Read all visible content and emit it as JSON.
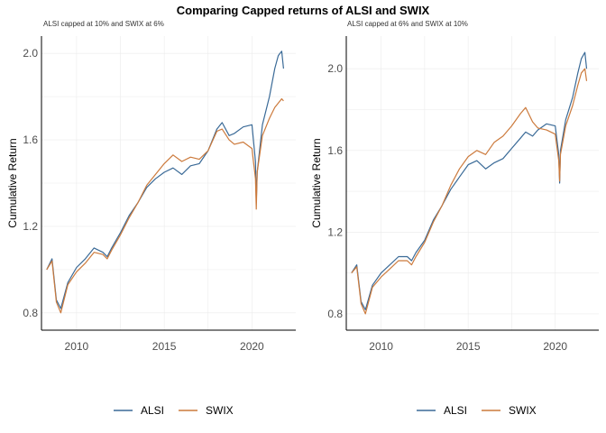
{
  "title": "Comparing Capped returns of ALSI and SWIX",
  "colors": {
    "ALSI": "#3a6a97",
    "SWIX": "#cc7a3c"
  },
  "legend": {
    "position": "bottom",
    "items": [
      "ALSI",
      "SWIX"
    ]
  },
  "chart_data": [
    {
      "type": "line",
      "subtitle": "ALSI capped at 10% and SWIX at 6%",
      "xlabel": "",
      "ylabel": "Cumulative Return",
      "xlim": [
        2008.0,
        2022.5
      ],
      "ylim": [
        0.72,
        2.08
      ],
      "xticks": [
        2010,
        2015,
        2020
      ],
      "yticks": [
        0.8,
        1.2,
        1.6,
        2.0
      ],
      "ytick_labels": [
        "0.8",
        "1.2",
        "1.6",
        "2.0"
      ],
      "grid": true,
      "series": [
        {
          "name": "ALSI",
          "x": [
            2008.3,
            2008.6,
            2008.85,
            2009.1,
            2009.5,
            2010.0,
            2010.5,
            2011.0,
            2011.5,
            2011.75,
            2012.0,
            2012.5,
            2013.0,
            2013.5,
            2014.0,
            2014.5,
            2015.0,
            2015.5,
            2016.0,
            2016.5,
            2017.0,
            2017.5,
            2018.0,
            2018.3,
            2018.7,
            2019.0,
            2019.5,
            2020.0,
            2020.2,
            2020.25,
            2020.3,
            2020.6,
            2021.0,
            2021.3,
            2021.5,
            2021.7,
            2021.8
          ],
          "values": [
            1.0,
            1.05,
            0.86,
            0.82,
            0.94,
            1.01,
            1.05,
            1.1,
            1.08,
            1.06,
            1.1,
            1.17,
            1.25,
            1.31,
            1.38,
            1.42,
            1.45,
            1.47,
            1.44,
            1.48,
            1.49,
            1.55,
            1.65,
            1.68,
            1.62,
            1.63,
            1.66,
            1.67,
            1.5,
            1.31,
            1.45,
            1.67,
            1.8,
            1.93,
            1.99,
            2.01,
            1.93
          ]
        },
        {
          "name": "SWIX",
          "x": [
            2008.3,
            2008.6,
            2008.85,
            2009.1,
            2009.5,
            2010.0,
            2010.5,
            2011.0,
            2011.5,
            2011.75,
            2012.0,
            2012.5,
            2013.0,
            2013.5,
            2014.0,
            2014.5,
            2015.0,
            2015.5,
            2016.0,
            2016.5,
            2017.0,
            2017.5,
            2018.0,
            2018.3,
            2018.7,
            2019.0,
            2019.5,
            2020.0,
            2020.2,
            2020.25,
            2020.3,
            2020.6,
            2021.0,
            2021.3,
            2021.5,
            2021.7,
            2021.8
          ],
          "values": [
            1.0,
            1.04,
            0.85,
            0.8,
            0.93,
            0.99,
            1.03,
            1.08,
            1.07,
            1.05,
            1.09,
            1.16,
            1.24,
            1.31,
            1.39,
            1.44,
            1.49,
            1.53,
            1.5,
            1.52,
            1.51,
            1.55,
            1.64,
            1.65,
            1.6,
            1.58,
            1.59,
            1.56,
            1.42,
            1.28,
            1.45,
            1.62,
            1.7,
            1.75,
            1.77,
            1.79,
            1.78
          ]
        }
      ]
    },
    {
      "type": "line",
      "subtitle": "ALSI capped at 6% and SWIX at 10%",
      "xlabel": "",
      "ylabel": "Cumulative Return",
      "xlim": [
        2008.0,
        2022.5
      ],
      "ylim": [
        0.72,
        2.16
      ],
      "xticks": [
        2010,
        2015,
        2020
      ],
      "yticks": [
        0.8,
        1.2,
        1.6,
        2.0
      ],
      "ytick_labels": [
        "0.8",
        "1.2",
        "1.6",
        "2.0"
      ],
      "grid": true,
      "series": [
        {
          "name": "ALSI",
          "x": [
            2008.3,
            2008.6,
            2008.85,
            2009.1,
            2009.5,
            2010.0,
            2010.5,
            2011.0,
            2011.5,
            2011.75,
            2012.0,
            2012.5,
            2013.0,
            2013.5,
            2014.0,
            2014.5,
            2015.0,
            2015.5,
            2016.0,
            2016.5,
            2017.0,
            2017.5,
            2018.0,
            2018.3,
            2018.7,
            2019.0,
            2019.5,
            2020.0,
            2020.2,
            2020.25,
            2020.3,
            2020.6,
            2021.0,
            2021.3,
            2021.5,
            2021.7,
            2021.8
          ],
          "values": [
            1.0,
            1.04,
            0.86,
            0.82,
            0.94,
            1.0,
            1.04,
            1.08,
            1.08,
            1.06,
            1.1,
            1.16,
            1.26,
            1.33,
            1.41,
            1.47,
            1.53,
            1.55,
            1.51,
            1.54,
            1.56,
            1.61,
            1.66,
            1.69,
            1.67,
            1.7,
            1.73,
            1.72,
            1.58,
            1.44,
            1.6,
            1.75,
            1.86,
            1.98,
            2.05,
            2.08,
            2.0
          ]
        },
        {
          "name": "SWIX",
          "x": [
            2008.3,
            2008.6,
            2008.85,
            2009.1,
            2009.5,
            2010.0,
            2010.5,
            2011.0,
            2011.5,
            2011.75,
            2012.0,
            2012.5,
            2013.0,
            2013.5,
            2014.0,
            2014.5,
            2015.0,
            2015.5,
            2016.0,
            2016.5,
            2017.0,
            2017.5,
            2018.0,
            2018.3,
            2018.7,
            2019.0,
            2019.5,
            2020.0,
            2020.2,
            2020.25,
            2020.3,
            2020.6,
            2021.0,
            2021.3,
            2021.5,
            2021.7,
            2021.8
          ],
          "values": [
            1.0,
            1.03,
            0.85,
            0.8,
            0.93,
            0.98,
            1.02,
            1.06,
            1.06,
            1.04,
            1.08,
            1.15,
            1.25,
            1.33,
            1.43,
            1.51,
            1.57,
            1.6,
            1.58,
            1.64,
            1.67,
            1.72,
            1.78,
            1.81,
            1.74,
            1.71,
            1.7,
            1.68,
            1.55,
            1.45,
            1.58,
            1.72,
            1.82,
            1.92,
            1.98,
            2.0,
            1.94
          ]
        }
      ]
    }
  ]
}
